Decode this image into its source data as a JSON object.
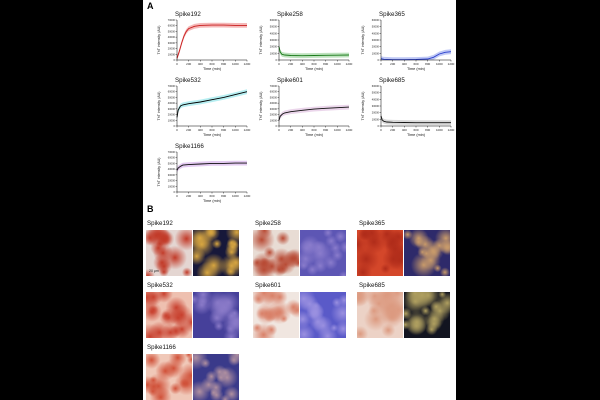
{
  "figure": {
    "panel_a_label": "A",
    "panel_b_label": "B",
    "xlabel": "Time (min)",
    "ylabel": "ThT intensity (AU)",
    "x_ticks": [
      "0",
      "200",
      "400",
      "600",
      "800",
      "1000",
      "1200"
    ],
    "scale_bar_label": "20 μm"
  },
  "chart_data": [
    {
      "type": "line",
      "title": "Spike192",
      "xlabel": "Time (min)",
      "ylabel": "ThT intensity (AU)",
      "xlim": [
        0,
        1200
      ],
      "ylim": [
        0,
        70000
      ],
      "y_ticks": [
        "0",
        "10000",
        "20000",
        "30000",
        "40000",
        "50000",
        "60000",
        "70000"
      ],
      "color": "#c81e1e",
      "band_color": "#f2a0a0",
      "x": [
        0,
        40,
        80,
        120,
        160,
        200,
        300,
        400,
        600,
        800,
        1000,
        1200
      ],
      "y": [
        3000,
        15000,
        30000,
        42000,
        50000,
        55000,
        59000,
        60500,
        61000,
        61000,
        60500,
        60500
      ]
    },
    {
      "type": "line",
      "title": "Spike258",
      "xlabel": "Time (min)",
      "ylabel": "ThT intensity (AU)",
      "xlim": [
        0,
        1200
      ],
      "ylim": [
        0,
        60000
      ],
      "y_ticks": [
        "0",
        "10000",
        "20000",
        "30000",
        "40000",
        "50000",
        "60000"
      ],
      "color": "#1a7a1a",
      "band_color": "#a8d8a8",
      "x": [
        0,
        20,
        50,
        100,
        200,
        400,
        600,
        800,
        1000,
        1200
      ],
      "y": [
        20000,
        12000,
        8500,
        7500,
        6800,
        6500,
        6800,
        7000,
        7200,
        7500
      ]
    },
    {
      "type": "line",
      "title": "Spike365",
      "xlabel": "Time (min)",
      "ylabel": "ThT intensity (AU)",
      "xlim": [
        0,
        1200
      ],
      "ylim": [
        0,
        60000
      ],
      "y_ticks": [
        "0",
        "10000",
        "20000",
        "30000",
        "40000",
        "50000",
        "60000"
      ],
      "color": "#2a3fcc",
      "band_color": "#aab6f2",
      "x": [
        0,
        50,
        200,
        400,
        600,
        800,
        900,
        1000,
        1100,
        1200
      ],
      "y": [
        2000,
        1000,
        500,
        500,
        800,
        1500,
        4000,
        9000,
        11500,
        12500
      ]
    },
    {
      "type": "line",
      "title": "Spike532",
      "xlabel": "Time (min)",
      "ylabel": "ThT intensity (AU)",
      "xlim": [
        0,
        1200
      ],
      "ylim": [
        0,
        70000
      ],
      "y_ticks": [
        "0",
        "10000",
        "20000",
        "30000",
        "40000",
        "50000",
        "60000",
        "70000"
      ],
      "color": "#000000",
      "band_color": "#9ee8ec",
      "x": [
        0,
        20,
        60,
        100,
        200,
        400,
        600,
        800,
        1000,
        1200
      ],
      "y": [
        15000,
        28000,
        35000,
        37000,
        39000,
        42000,
        46000,
        50000,
        55000,
        60000
      ]
    },
    {
      "type": "line",
      "title": "Spike601",
      "xlabel": "Time (min)",
      "ylabel": "ThT intensity (AU)",
      "xlim": [
        0,
        1200
      ],
      "ylim": [
        0,
        70000
      ],
      "y_ticks": [
        "0",
        "10000",
        "20000",
        "30000",
        "40000",
        "50000",
        "60000",
        "70000"
      ],
      "color": "#111111",
      "band_color": "#e4c8e4",
      "x": [
        0,
        20,
        60,
        100,
        200,
        400,
        600,
        800,
        1000,
        1200
      ],
      "y": [
        10000,
        17000,
        21000,
        23000,
        25000,
        27500,
        29500,
        31000,
        32000,
        33000
      ]
    },
    {
      "type": "line",
      "title": "Spike685",
      "xlabel": "Time (min)",
      "ylabel": "ThT intensity (AU)",
      "xlim": [
        0,
        1200
      ],
      "ylim": [
        0,
        60000
      ],
      "y_ticks": [
        "0",
        "10000",
        "20000",
        "30000",
        "40000",
        "50000",
        "60000"
      ],
      "color": "#111111",
      "band_color": "#cccccc",
      "x": [
        0,
        20,
        50,
        100,
        200,
        400,
        600,
        800,
        1000,
        1200
      ],
      "y": [
        15000,
        9000,
        7000,
        6000,
        5500,
        5200,
        5000,
        5000,
        5000,
        5000
      ]
    },
    {
      "type": "line",
      "title": "Spike1166",
      "xlabel": "Time (min)",
      "ylabel": "ThT intensity (AU)",
      "xlim": [
        0,
        1200
      ],
      "ylim": [
        0,
        70000
      ],
      "y_ticks": [
        "0",
        "10000",
        "20000",
        "30000",
        "40000",
        "50000",
        "60000",
        "70000"
      ],
      "color": "#111111",
      "band_color": "#d9b8ec",
      "x": [
        0,
        20,
        60,
        100,
        200,
        400,
        600,
        800,
        1000,
        1200
      ],
      "y": [
        38000,
        42000,
        45000,
        47000,
        48000,
        49000,
        50000,
        50000,
        50500,
        50500
      ]
    }
  ],
  "panel_b": [
    {
      "title": "Spike192",
      "bright": "#e4d6d2",
      "bright_spot": "#c23a28",
      "fluor": "#17183a",
      "fluor_spot": "#d8a640"
    },
    {
      "title": "Spike258",
      "bright": "#e8dcd4",
      "bright_spot": "#b84a34",
      "fluor": "#5d56b4",
      "fluor_spot": "#8a7ccc"
    },
    {
      "title": "Spike365",
      "bright": "#d4472a",
      "bright_spot": "#b02c1a",
      "fluor": "#2e2a6a",
      "fluor_spot": "#c89a6a"
    },
    {
      "title": "Spike532",
      "bright": "#eec0b0",
      "bright_spot": "#c8402e",
      "fluor": "#46409a",
      "fluor_spot": "#8a7ac8"
    },
    {
      "title": "Spike601",
      "bright": "#f0e6e0",
      "bright_spot": "#d98068",
      "fluor": "#5a5ac8",
      "fluor_spot": "#9a90e0"
    },
    {
      "title": "Spike685",
      "bright": "#ecd2c6",
      "bright_spot": "#dc9a80",
      "fluor": "#121420",
      "fluor_spot": "#b0a060"
    },
    {
      "title": "Spike1166",
      "bright": "#f0c8b8",
      "bright_spot": "#d05038",
      "fluor": "#3a3a8a",
      "fluor_spot": "#b090a0"
    }
  ]
}
